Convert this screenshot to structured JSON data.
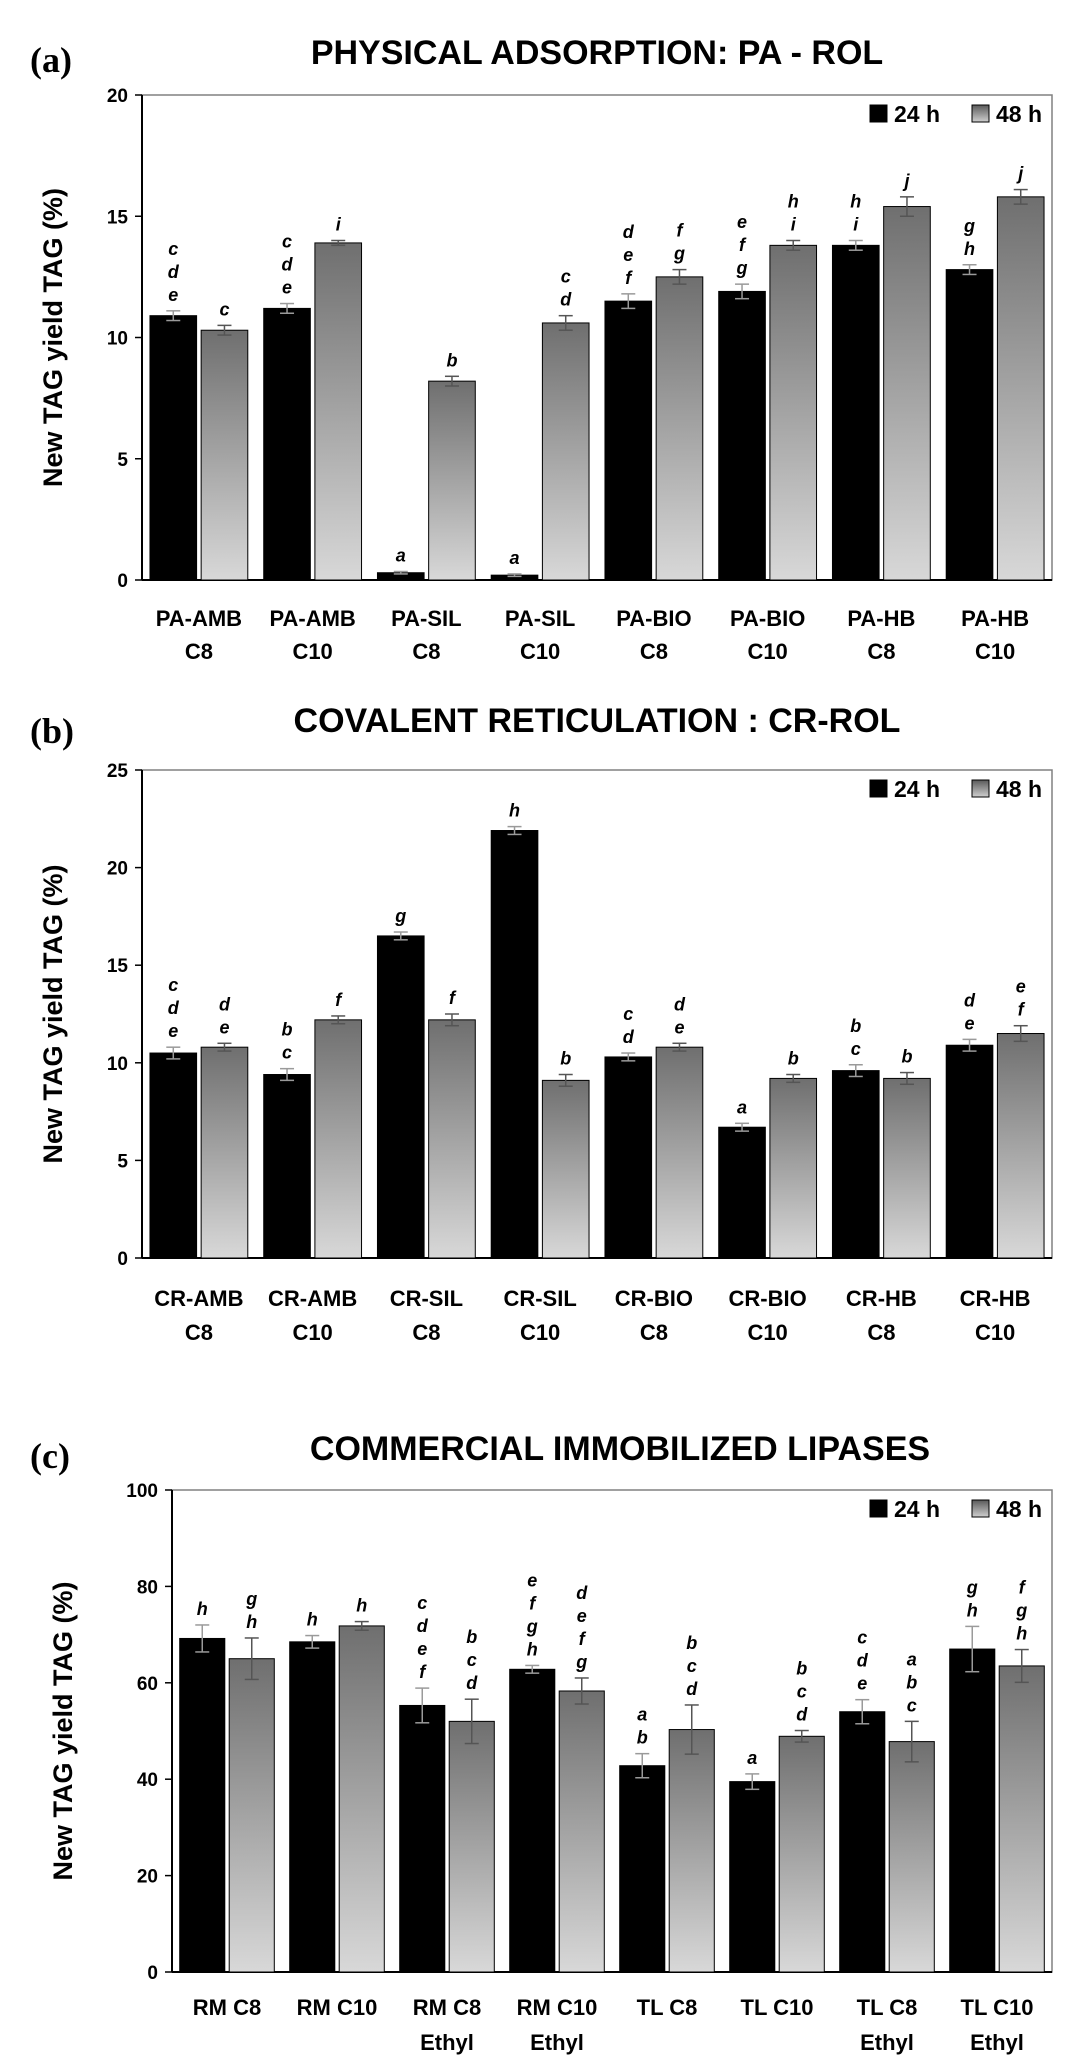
{
  "chart_data": [
    {
      "type": "bar",
      "panel_label": "(a)",
      "title": "PHYSICAL ADSORPTION: PA - ROL",
      "ylabel": "New TAG yield TAG (%)",
      "ylim": [
        0,
        20
      ],
      "yticks": [
        0,
        5,
        10,
        15,
        20
      ],
      "legend_position": "top-right",
      "categories": [
        [
          "PA-AMB",
          "C8"
        ],
        [
          "PA-AMB",
          "C10"
        ],
        [
          "PA-SIL",
          "C8"
        ],
        [
          "PA-SIL",
          "C10"
        ],
        [
          "PA-BIO",
          "C8"
        ],
        [
          "PA-BIO",
          "C10"
        ],
        [
          "PA-HB",
          "C8"
        ],
        [
          "PA-HB",
          "C10"
        ]
      ],
      "series": [
        {
          "name": "24 h",
          "color": "#000000",
          "values": [
            10.9,
            11.2,
            0.3,
            0.2,
            11.5,
            11.9,
            13.8,
            12.8
          ],
          "errors": [
            0.2,
            0.2,
            0.05,
            0.05,
            0.3,
            0.3,
            0.2,
            0.2
          ],
          "letters": [
            [
              "c",
              "d",
              "e"
            ],
            [
              "c",
              "d",
              "e"
            ],
            [
              "a"
            ],
            [
              "a"
            ],
            [
              "d",
              "e",
              "f"
            ],
            [
              "e",
              "f",
              "g"
            ],
            [
              "h",
              "i"
            ],
            [
              "g",
              "h"
            ]
          ]
        },
        {
          "name": "48 h",
          "color": "#8a8a8a",
          "values": [
            10.3,
            13.9,
            8.2,
            10.6,
            12.5,
            13.8,
            15.4,
            15.8
          ],
          "errors": [
            0.2,
            0.1,
            0.2,
            0.3,
            0.3,
            0.2,
            0.4,
            0.3
          ],
          "letters": [
            [
              "c"
            ],
            [
              "i"
            ],
            [
              "b"
            ],
            [
              "c",
              "d"
            ],
            [
              "f",
              "g"
            ],
            [
              "h",
              "i"
            ],
            [
              "j"
            ],
            [
              "j"
            ]
          ]
        }
      ]
    },
    {
      "type": "bar",
      "panel_label": "(b)",
      "title": "COVALENT RETICULATION : CR-ROL",
      "ylabel": "New TAG yield TAG (%)",
      "ylim": [
        0,
        25
      ],
      "yticks": [
        0,
        5,
        10,
        15,
        20,
        25
      ],
      "legend_position": "top-right",
      "categories": [
        [
          "CR-AMB",
          "C8"
        ],
        [
          "CR-AMB",
          "C10"
        ],
        [
          "CR-SIL",
          "C8"
        ],
        [
          "CR-SIL",
          "C10"
        ],
        [
          "CR-BIO",
          "C8"
        ],
        [
          "CR-BIO",
          "C10"
        ],
        [
          "CR-HB",
          "C8"
        ],
        [
          "CR-HB",
          "C10"
        ]
      ],
      "series": [
        {
          "name": "24 h",
          "color": "#000000",
          "values": [
            10.5,
            9.4,
            16.5,
            21.9,
            10.3,
            6.7,
            9.6,
            10.9
          ],
          "errors": [
            0.3,
            0.3,
            0.2,
            0.2,
            0.2,
            0.2,
            0.3,
            0.3
          ],
          "letters": [
            [
              "c",
              "d",
              "e"
            ],
            [
              "b",
              "c"
            ],
            [
              "g"
            ],
            [
              "h"
            ],
            [
              "c",
              "d"
            ],
            [
              "a"
            ],
            [
              "b",
              "c"
            ],
            [
              "d",
              "e"
            ]
          ]
        },
        {
          "name": "48 h",
          "color": "#8a8a8a",
          "values": [
            10.8,
            12.2,
            12.2,
            9.1,
            10.8,
            9.2,
            9.2,
            11.5
          ],
          "errors": [
            0.2,
            0.2,
            0.3,
            0.3,
            0.2,
            0.2,
            0.3,
            0.4
          ],
          "letters": [
            [
              "d",
              "e"
            ],
            [
              "f"
            ],
            [
              "f"
            ],
            [
              "b"
            ],
            [
              "d",
              "e"
            ],
            [
              "b"
            ],
            [
              "b"
            ],
            [
              "e",
              "f"
            ]
          ]
        }
      ]
    },
    {
      "type": "bar",
      "panel_label": "(c)",
      "title": "COMMERCIAL IMMOBILIZED LIPASES",
      "ylabel": "New TAG yield TAG (%)",
      "ylim": [
        0,
        100
      ],
      "yticks": [
        0,
        20,
        40,
        60,
        80,
        100
      ],
      "legend_position": "top-right",
      "categories": [
        [
          "RM C8"
        ],
        [
          "RM C10"
        ],
        [
          "RM C8",
          "Ethyl"
        ],
        [
          "RM C10",
          "Ethyl"
        ],
        [
          "TL C8"
        ],
        [
          "TL C10"
        ],
        [
          "TL C8",
          "Ethyl"
        ],
        [
          "TL C10",
          "Ethyl"
        ]
      ],
      "series": [
        {
          "name": "24 h",
          "color": "#000000",
          "values": [
            69.2,
            68.5,
            55.3,
            62.8,
            42.8,
            39.5,
            54.0,
            67.0
          ],
          "errors": [
            2.8,
            1.3,
            3.6,
            0.8,
            2.5,
            1.6,
            2.5,
            4.7
          ],
          "letters": [
            [
              "h"
            ],
            [
              "h"
            ],
            [
              "c",
              "d",
              "e",
              "f"
            ],
            [
              "e",
              "f",
              "g",
              "h"
            ],
            [
              "a",
              "b"
            ],
            [
              "a"
            ],
            [
              "c",
              "d",
              "e"
            ],
            [
              "g",
              "h"
            ]
          ]
        },
        {
          "name": "48 h",
          "color": "#8a8a8a",
          "values": [
            65.0,
            71.8,
            52.0,
            58.3,
            50.3,
            48.9,
            47.8,
            63.5
          ],
          "errors": [
            4.3,
            0.9,
            4.6,
            2.7,
            5.1,
            1.2,
            4.2,
            3.4
          ],
          "letters": [
            [
              "g",
              "h"
            ],
            [
              "h"
            ],
            [
              "b",
              "c",
              "d"
            ],
            [
              "d",
              "e",
              "f",
              "g"
            ],
            [
              "b",
              "c",
              "d"
            ],
            [
              "b",
              "c",
              "d"
            ],
            [
              "a",
              "b",
              "c"
            ],
            [
              "f",
              "g",
              "h"
            ]
          ]
        }
      ]
    }
  ]
}
